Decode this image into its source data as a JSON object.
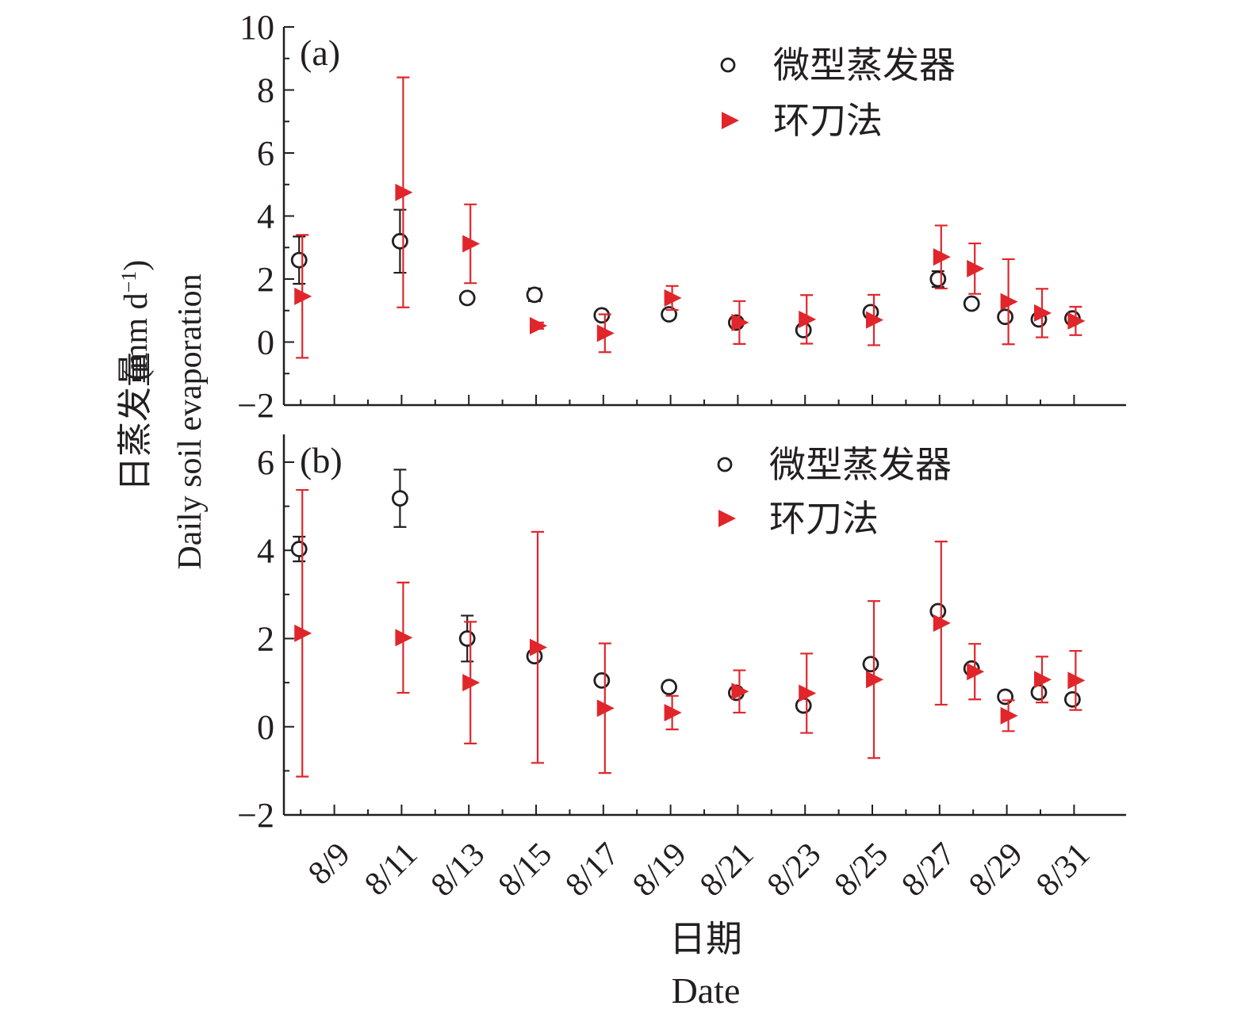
{
  "ylabel_cn": "日蒸发量",
  "ylabel_en": "Daily soil evaporation",
  "ylabel_unit": "(mm d",
  "ylabel_unit_sup": "−1",
  "ylabel_unit_close": ")",
  "xlabel_cn": "日期",
  "xlabel_en": "Date",
  "colors": {
    "axis": "#231f20",
    "micro": "#231f20",
    "ring": "#e0262b"
  },
  "chart_data": [
    {
      "type": "scatter",
      "panel_label": "(a)",
      "ylim": [
        -2,
        10
      ],
      "yticks": [
        -2,
        0,
        2,
        4,
        6,
        8,
        10
      ],
      "ytick_labels": [
        "−2",
        "0",
        "2",
        "4",
        "6",
        "8",
        "10"
      ],
      "xticks": [
        "8/9",
        "8/11",
        "8/13",
        "8/15",
        "8/17",
        "8/19",
        "8/21",
        "8/23",
        "8/25",
        "8/27",
        "8/29",
        "8/31"
      ],
      "legend_position": "top-right",
      "series": [
        {
          "name": "微型蒸发器",
          "marker": "open-circle",
          "x": [
            "8/8",
            "8/11",
            "8/13",
            "8/15",
            "8/17",
            "8/19",
            "8/21",
            "8/23",
            "8/25",
            "8/27",
            "8/28",
            "8/29",
            "8/30",
            "8/31"
          ],
          "y": [
            2.6,
            3.2,
            1.4,
            1.5,
            0.85,
            0.88,
            0.62,
            0.38,
            0.95,
            2.0,
            1.22,
            0.8,
            0.72,
            0.75
          ],
          "error": [
            0.75,
            1.0,
            0.1,
            0.2,
            0.08,
            0.1,
            0.12,
            0.1,
            0.12,
            0.25,
            0.1,
            0.1,
            0.08,
            0.1
          ]
        },
        {
          "name": "环刀法",
          "marker": "right-triangle",
          "x": [
            "8/8",
            "8/11",
            "8/13",
            "8/15",
            "8/17",
            "8/19",
            "8/21",
            "8/23",
            "8/25",
            "8/27",
            "8/28",
            "8/29",
            "8/30",
            "8/31"
          ],
          "y": [
            1.45,
            4.75,
            3.12,
            0.52,
            0.28,
            1.4,
            0.62,
            0.72,
            0.7,
            2.7,
            2.33,
            1.28,
            0.92,
            0.67
          ],
          "error": [
            1.95,
            3.65,
            1.25,
            0.1,
            0.6,
            0.38,
            0.68,
            0.77,
            0.8,
            1.0,
            0.8,
            1.35,
            0.77,
            0.45
          ]
        }
      ]
    },
    {
      "type": "scatter",
      "panel_label": "(b)",
      "ylim": [
        -2,
        6.5
      ],
      "yticks": [
        -2,
        0,
        2,
        4,
        6
      ],
      "ytick_labels": [
        "−2",
        "0",
        "2",
        "4",
        "6"
      ],
      "xticks": [
        "8/9",
        "8/11",
        "8/13",
        "8/15",
        "8/17",
        "8/19",
        "8/21",
        "8/23",
        "8/25",
        "8/27",
        "8/29",
        "8/31"
      ],
      "legend_position": "top-right",
      "series": [
        {
          "name": "微型蒸发器",
          "marker": "open-circle",
          "x": [
            "8/8",
            "8/11",
            "8/13",
            "8/15",
            "8/17",
            "8/19",
            "8/21",
            "8/23",
            "8/25",
            "8/27",
            "8/28",
            "8/29",
            "8/30",
            "8/31"
          ],
          "y": [
            4.03,
            5.18,
            2.0,
            1.6,
            1.05,
            0.9,
            0.77,
            0.48,
            1.42,
            2.62,
            1.32,
            0.68,
            0.78,
            0.62
          ],
          "error": [
            0.28,
            0.65,
            0.52,
            0.1,
            0.1,
            0.1,
            0.1,
            0.1,
            0.1,
            0.1,
            0.1,
            0.1,
            0.1,
            0.1
          ]
        },
        {
          "name": "环刀法",
          "marker": "right-triangle",
          "x": [
            "8/8",
            "8/11",
            "8/13",
            "8/15",
            "8/17",
            "8/19",
            "8/21",
            "8/23",
            "8/25",
            "8/27",
            "8/28",
            "8/29",
            "8/30",
            "8/31"
          ],
          "y": [
            2.12,
            2.02,
            1.0,
            1.8,
            0.42,
            0.32,
            0.8,
            0.76,
            1.07,
            2.35,
            1.25,
            0.25,
            1.07,
            1.05
          ],
          "error": [
            3.25,
            1.25,
            1.38,
            2.62,
            1.47,
            0.38,
            0.48,
            0.9,
            1.78,
            1.85,
            0.63,
            0.35,
            0.52,
            0.67
          ]
        }
      ]
    }
  ]
}
